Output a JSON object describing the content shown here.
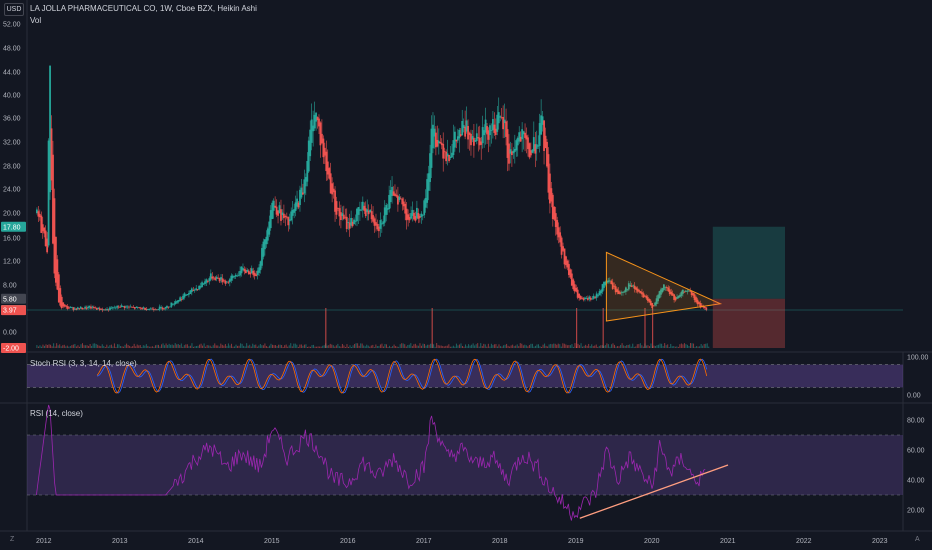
{
  "header": {
    "title": "LA JOLLA PHARMACEUTICAL CO, 1W, Cboe BZX, Heikin Ashi",
    "volume_label": "Vol",
    "currency": "USD"
  },
  "colors": {
    "background": "#131722",
    "up": "#26a69a",
    "down": "#ef5350",
    "pattern": "#f7931a",
    "oscillator_fill": "#7e57c2",
    "rsi_line": "#9c27b0",
    "stoch_k": "#2962ff",
    "stoch_d": "#ff6d00",
    "trendline": "#ff9e80"
  },
  "chart_data": [
    {
      "type": "candlestick",
      "title": "LA JOLLA PHARMACEUTICAL CO, 1W, Cboe BZX, Heikin Ashi",
      "price_axis_ticks": [
        -2.0,
        0.0,
        4.0,
        8.0,
        12.0,
        16.0,
        20.0,
        24.0,
        28.0,
        32.0,
        36.0,
        40.0,
        44.0,
        48.0,
        52.0
      ],
      "price_axis_tick_labels": [
        "-2.00",
        "0.00",
        "4.00",
        "8.00",
        "12.00",
        "16.00",
        "20.00",
        "24.00",
        "28.00",
        "32.00",
        "36.00",
        "40.00",
        "44.00",
        "48.00",
        "52.00"
      ],
      "time_axis_labels": [
        "2012",
        "2013",
        "2014",
        "2015",
        "2016",
        "2017",
        "2018",
        "2019",
        "2020",
        "2021",
        "2022",
        "2023"
      ],
      "price_badges": [
        {
          "label": "17.80",
          "color": "#26a69a"
        },
        {
          "label": "5.80",
          "color": "#434651"
        },
        {
          "label": "4.00",
          "color": "#26a69a"
        },
        {
          "label": "3.97",
          "color": "#ef5350"
        },
        {
          "label": "-2.00",
          "color": "#ef5350"
        }
      ],
      "price_path": [
        [
          2011.9,
          20
        ],
        [
          2012.0,
          16
        ],
        [
          2012.04,
          14
        ],
        [
          2012.07,
          50
        ],
        [
          2012.1,
          18
        ],
        [
          2012.13,
          10
        ],
        [
          2012.2,
          4.5
        ],
        [
          2012.4,
          4.2
        ],
        [
          2012.6,
          4.4
        ],
        [
          2012.8,
          4.0
        ],
        [
          2013.0,
          4.6
        ],
        [
          2013.2,
          4.3
        ],
        [
          2013.4,
          4.2
        ],
        [
          2013.6,
          4.4
        ],
        [
          2013.8,
          6.0
        ],
        [
          2014.0,
          7.5
        ],
        [
          2014.2,
          9.5
        ],
        [
          2014.4,
          8.5
        ],
        [
          2014.6,
          10.5
        ],
        [
          2014.8,
          10
        ],
        [
          2015.0,
          22
        ],
        [
          2015.2,
          18
        ],
        [
          2015.4,
          24
        ],
        [
          2015.55,
          38
        ],
        [
          2015.7,
          28
        ],
        [
          2015.85,
          20
        ],
        [
          2016.0,
          18
        ],
        [
          2016.2,
          21
        ],
        [
          2016.4,
          18
        ],
        [
          2016.6,
          24
        ],
        [
          2016.8,
          19
        ],
        [
          2017.0,
          21
        ],
        [
          2017.1,
          34
        ],
        [
          2017.3,
          30
        ],
        [
          2017.5,
          34
        ],
        [
          2017.7,
          33
        ],
        [
          2017.9,
          35
        ],
        [
          2018.05,
          35
        ],
        [
          2018.1,
          29
        ],
        [
          2018.25,
          33
        ],
        [
          2018.4,
          30
        ],
        [
          2018.55,
          35
        ],
        [
          2018.65,
          22
        ],
        [
          2018.8,
          14
        ],
        [
          2018.95,
          7.5
        ],
        [
          2019.05,
          5.5
        ],
        [
          2019.25,
          6
        ],
        [
          2019.4,
          9
        ],
        [
          2019.55,
          6.5
        ],
        [
          2019.7,
          8
        ],
        [
          2019.85,
          6.5
        ],
        [
          2020.0,
          4.5
        ],
        [
          2020.15,
          8
        ],
        [
          2020.3,
          5.5
        ],
        [
          2020.45,
          7.5
        ],
        [
          2020.6,
          4.8
        ],
        [
          2020.72,
          4.0
        ]
      ],
      "volume_spikes": [
        2015.7,
        2017.1,
        2019.0,
        2019.35,
        2019.9,
        2020.0
      ],
      "triangle_pattern": {
        "apex": [
          2020.9,
          5.0
        ],
        "upper_start": [
          2019.4,
          13.5
        ],
        "lower_start": [
          2019.4,
          2.0
        ]
      },
      "long_position": {
        "x_start": 2020.8,
        "x_end": 2021.75,
        "target": 17.8,
        "entry": 5.8,
        "stop": -2.0
      }
    },
    {
      "type": "line",
      "title": "Stoch RSI (3, 3, 14, 14, close)",
      "y_ticks": [
        0,
        100
      ],
      "y_tick_labels": [
        "0.00",
        "100.00"
      ],
      "band": [
        20,
        80
      ],
      "series": [
        {
          "color": "#2962ff"
        },
        {
          "color": "#ff6d00"
        }
      ]
    },
    {
      "type": "line",
      "title": "RSI (14, close)",
      "y_ticks": [
        20,
        40,
        60,
        80
      ],
      "y_tick_labels": [
        "20.00",
        "40.00",
        "60.00",
        "80.00"
      ],
      "band": [
        30,
        70
      ],
      "rsi_path": [
        [
          2011.9,
          30
        ],
        [
          2012.07,
          95
        ],
        [
          2012.15,
          30
        ],
        [
          2013.0,
          30
        ],
        [
          2013.6,
          30
        ],
        [
          2013.8,
          42
        ],
        [
          2014.0,
          55
        ],
        [
          2014.2,
          62
        ],
        [
          2014.4,
          48
        ],
        [
          2014.6,
          58
        ],
        [
          2014.85,
          48
        ],
        [
          2015.0,
          75
        ],
        [
          2015.2,
          55
        ],
        [
          2015.45,
          70
        ],
        [
          2015.6,
          62
        ],
        [
          2015.8,
          40
        ],
        [
          2016.0,
          38
        ],
        [
          2016.2,
          52
        ],
        [
          2016.4,
          42
        ],
        [
          2016.6,
          55
        ],
        [
          2016.8,
          40
        ],
        [
          2017.0,
          48
        ],
        [
          2017.1,
          82
        ],
        [
          2017.3,
          55
        ],
        [
          2017.5,
          60
        ],
        [
          2017.7,
          50
        ],
        [
          2017.9,
          55
        ],
        [
          2018.1,
          40
        ],
        [
          2018.3,
          58
        ],
        [
          2018.5,
          48
        ],
        [
          2018.65,
          35
        ],
        [
          2018.8,
          26
        ],
        [
          2018.95,
          18
        ],
        [
          2019.05,
          22
        ],
        [
          2019.25,
          30
        ],
        [
          2019.4,
          60
        ],
        [
          2019.55,
          40
        ],
        [
          2019.7,
          55
        ],
        [
          2019.85,
          45
        ],
        [
          2020.0,
          35
        ],
        [
          2020.1,
          62
        ],
        [
          2020.25,
          45
        ],
        [
          2020.4,
          55
        ],
        [
          2020.55,
          40
        ],
        [
          2020.7,
          42
        ]
      ],
      "trendline": {
        "start": [
          2019.05,
          14.5
        ],
        "end": [
          2021.0,
          50
        ]
      }
    }
  ]
}
